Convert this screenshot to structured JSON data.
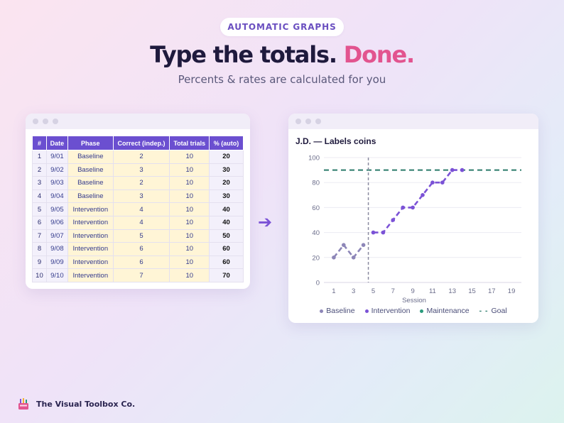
{
  "badge": "AUTOMATIC GRAPHS",
  "headline": {
    "main": "Type the totals.",
    "accent": "Done."
  },
  "subhead": "Percents & rates are calculated for you",
  "table": {
    "headers": [
      "#",
      "Date",
      "Phase",
      "Correct (indep.)",
      "Total trials",
      "% (auto)"
    ],
    "rows": [
      [
        "1",
        "9/01",
        "Baseline",
        "2",
        "10",
        "20"
      ],
      [
        "2",
        "9/02",
        "Baseline",
        "3",
        "10",
        "30"
      ],
      [
        "3",
        "9/03",
        "Baseline",
        "2",
        "10",
        "20"
      ],
      [
        "4",
        "9/04",
        "Baseline",
        "3",
        "10",
        "30"
      ],
      [
        "5",
        "9/05",
        "Intervention",
        "4",
        "10",
        "40"
      ],
      [
        "6",
        "9/06",
        "Intervention",
        "4",
        "10",
        "40"
      ],
      [
        "7",
        "9/07",
        "Intervention",
        "5",
        "10",
        "50"
      ],
      [
        "8",
        "9/08",
        "Intervention",
        "6",
        "10",
        "60"
      ],
      [
        "9",
        "9/09",
        "Intervention",
        "6",
        "10",
        "60"
      ],
      [
        "10",
        "9/10",
        "Intervention",
        "7",
        "10",
        "70"
      ]
    ]
  },
  "arrow_glyph": "➔",
  "chart_data": {
    "type": "line",
    "title": "J.D. — Labels coins",
    "xlabel": "Session",
    "ylabel": "",
    "xlim": [
      0,
      20
    ],
    "ylim": [
      0,
      100
    ],
    "x_ticks": [
      "1",
      "3",
      "5",
      "7",
      "9",
      "11",
      "13",
      "15",
      "17",
      "19"
    ],
    "y_ticks": [
      "0",
      "20",
      "40",
      "60",
      "80",
      "100"
    ],
    "phase_change_x": 4.5,
    "goal": 90,
    "grid": true,
    "legend_position": "bottom",
    "series": [
      {
        "name": "Baseline",
        "color": "#8d86b8",
        "x": [
          1,
          2,
          3,
          4
        ],
        "y": [
          20,
          30,
          20,
          30
        ]
      },
      {
        "name": "Intervention",
        "color": "#7b52d6",
        "x": [
          5,
          6,
          7,
          8,
          9,
          10,
          11,
          12,
          13,
          14
        ],
        "y": [
          40,
          40,
          50,
          60,
          60,
          70,
          80,
          80,
          90,
          90
        ]
      },
      {
        "name": "Maintenance",
        "color": "#2a9a7c",
        "x": [],
        "y": []
      }
    ],
    "goal_label": "Goal",
    "goal_color": "#2a7a6a",
    "legend_dash_glyph": "- -"
  },
  "brand": "The Visual Toolbox Co.",
  "colors": {
    "accent": "#e2548f",
    "header_purple": "#6b4fd0",
    "input_yellow": "#fff5d6"
  }
}
